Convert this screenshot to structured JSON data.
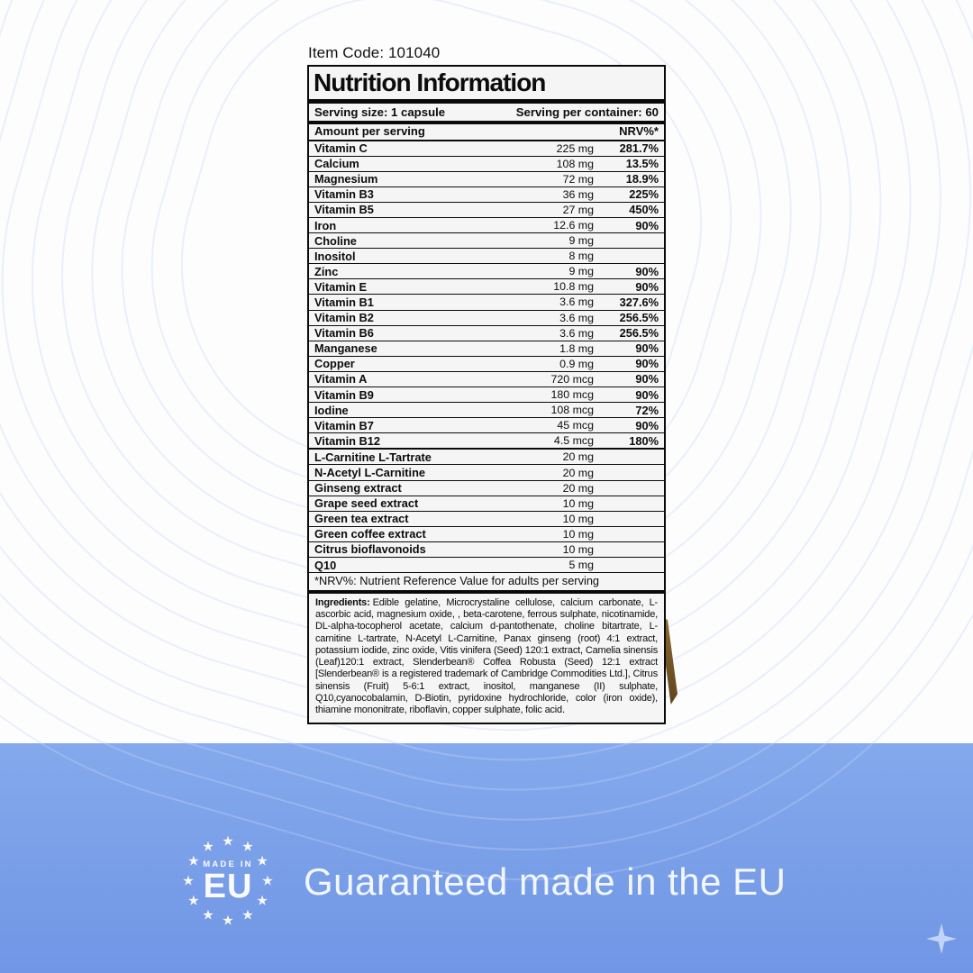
{
  "page": {
    "item_code": "Item Code: 101040"
  },
  "nutrition": {
    "title": "Nutrition Information",
    "serving_size": "Serving size: 1 capsule",
    "servings_per_container": "Serving per container: 60",
    "amount_header": "Amount per serving",
    "nrv_header": "NRV%*",
    "rows": [
      {
        "name": "Vitamin C",
        "amount": "225 mg",
        "nrv": "281.7%"
      },
      {
        "name": "Calcium",
        "amount": "108 mg",
        "nrv": "13.5%"
      },
      {
        "name": "Magnesium",
        "amount": "72 mg",
        "nrv": "18.9%"
      },
      {
        "name": "Vitamin B3",
        "amount": "36 mg",
        "nrv": "225%"
      },
      {
        "name": "Vitamin B5",
        "amount": "27 mg",
        "nrv": "450%"
      },
      {
        "name": "Iron",
        "amount": "12.6 mg",
        "nrv": "90%"
      },
      {
        "name": "Choline",
        "amount": "9 mg",
        "nrv": ""
      },
      {
        "name": "Inositol",
        "amount": "8 mg",
        "nrv": ""
      },
      {
        "name": "Zinc",
        "amount": "9 mg",
        "nrv": "90%"
      },
      {
        "name": "Vitamin E",
        "amount": "10.8 mg",
        "nrv": "90%"
      },
      {
        "name": "Vitamin B1",
        "amount": "3.6 mg",
        "nrv": "327.6%"
      },
      {
        "name": "Vitamin B2",
        "amount": "3.6 mg",
        "nrv": "256.5%"
      },
      {
        "name": "Vitamin B6",
        "amount": "3.6 mg",
        "nrv": "256.5%"
      },
      {
        "name": "Manganese",
        "amount": "1.8 mg",
        "nrv": "90%"
      },
      {
        "name": "Copper",
        "amount": "0.9 mg",
        "nrv": "90%"
      },
      {
        "name": "Vitamin A",
        "amount": "720 mcg",
        "nrv": "90%"
      },
      {
        "name": "Vitamin B9",
        "amount": "180 mcg",
        "nrv": "90%"
      },
      {
        "name": "Iodine",
        "amount": "108 mcg",
        "nrv": "72%"
      },
      {
        "name": "Vitamin B7",
        "amount": "45 mcg",
        "nrv": "90%"
      },
      {
        "name": "Vitamin B12",
        "amount": "4.5 mcg",
        "nrv": "180%",
        "thick_separator": true
      },
      {
        "name": "L-Carnitine L-Tartrate",
        "amount": "20 mg",
        "nrv": ""
      },
      {
        "name": "N-Acetyl L-Carnitine",
        "amount": "20 mg",
        "nrv": ""
      },
      {
        "name": "Ginseng extract",
        "amount": "20 mg",
        "nrv": ""
      },
      {
        "name": "Grape seed extract",
        "amount": "10 mg",
        "nrv": ""
      },
      {
        "name": "Green tea extract",
        "amount": "10 mg",
        "nrv": ""
      },
      {
        "name": "Green coffee extract",
        "amount": "10 mg",
        "nrv": ""
      },
      {
        "name": "Citrus bioflavonoids",
        "amount": "10 mg",
        "nrv": ""
      },
      {
        "name": "Q10",
        "amount": "5 mg",
        "nrv": ""
      }
    ],
    "footnote": "*NRV%: Nutrient Reference Value for adults per serving",
    "ingredients_label": "Ingredients:",
    "ingredients_text": "Edible gelatine, Microcrystaline cellulose, calcium carbonate, L-ascorbic acid, magnesium oxide, , beta-carotene, ferrous sulphate, nicotinamide, DL-alpha-tocopherol acetate, calcium d-pantothenate, choline bitartrate, L-carnitine L-tartrate, N-Acetyl L-Carnitine, Panax ginseng (root) 4:1 extract, potassium iodide, zinc oxide, Vitis vinifera (Seed) 120:1 extract, Camelia sinensis (Leaf)120:1 extract, Slenderbean® Coffea Robusta (Seed) 12:1 extract [Slenderbean® is a registered trademark of Cambridge Commodities Ltd.], Citrus sinensis (Fruit) 5-6:1 extract, inositol, manganese (II) sulphate, Q10,cyanocobalamin, D-Biotin, pyridoxine hydrochloride, color (iron oxide), thiamine mononitrate, riboflavin, copper sulphate, folic acid."
  },
  "footer": {
    "eu_badge": {
      "top_text": "MADE IN",
      "main_text": "EU",
      "star_glyph": "★",
      "star_count": 12
    },
    "tagline": "Guaranteed made in the EU"
  },
  "colors": {
    "band_blue_light": "#84a9ec",
    "band_blue_dark": "#7096e5",
    "pattern_blue": "#85a8ec",
    "label_bg": "#f5f5f6",
    "brown": "#5f431a",
    "brown_light": "#8a6a33",
    "white_text": "#f2f6fe"
  }
}
